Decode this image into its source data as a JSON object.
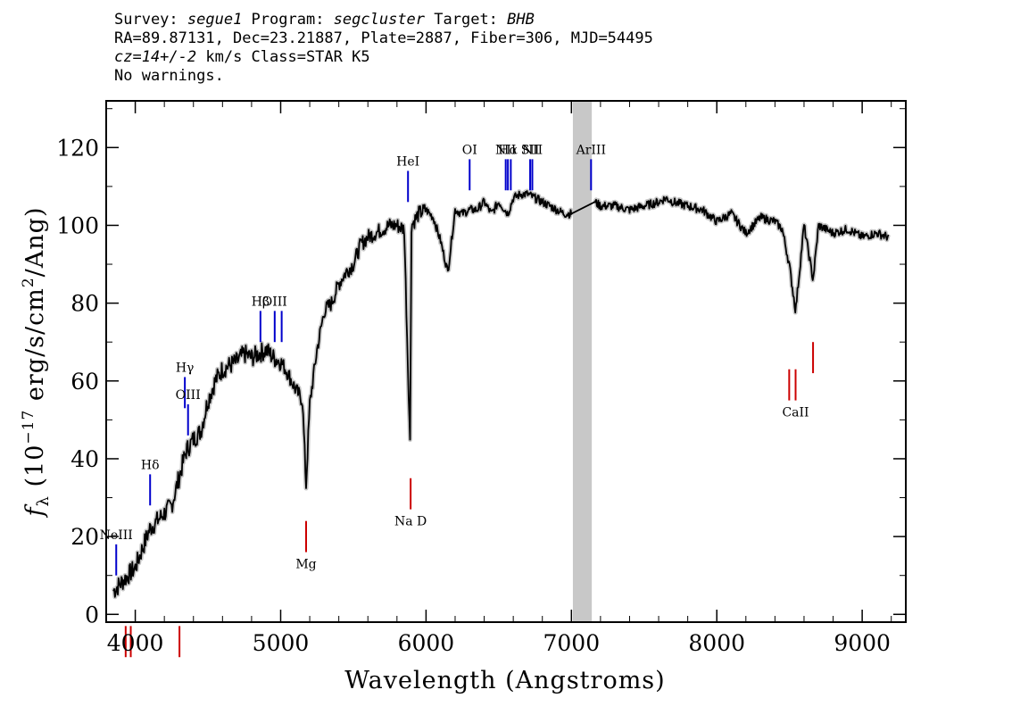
{
  "header": {
    "line1": {
      "survey_label": "Survey: ",
      "survey": "segue1",
      "program_label": " Program: ",
      "program": "segcluster",
      "target_label": " Target: ",
      "target": "BHB"
    },
    "line2": "RA=89.87131, Dec=23.21887, Plate=2887, Fiber=306, MJD=54495",
    "line3": {
      "cz": "cz=14+/-2",
      "rest": " km/s Class=STAR K5"
    },
    "line4": "No warnings."
  },
  "chart_data": {
    "type": "line",
    "xlabel": "Wavelength (Angstroms)",
    "ylabel": "f_λ (10^-17 erg/s/cm^2/Ang)",
    "xlim": [
      3800,
      9300
    ],
    "ylim": [
      -2,
      132
    ],
    "xticks": [
      4000,
      5000,
      6000,
      7000,
      8000,
      9000
    ],
    "yticks": [
      0,
      20,
      40,
      60,
      80,
      100,
      120
    ],
    "masked_band": [
      7010,
      7140
    ],
    "series": [
      {
        "x": [
          3850,
          3900,
          3950,
          4000,
          4050,
          4100,
          4150,
          4200,
          4250,
          4300,
          4350,
          4400,
          4450,
          4500,
          4550,
          4600,
          4650,
          4700,
          4750,
          4800,
          4850,
          4900,
          4950,
          5000,
          5050,
          5100,
          5150,
          5175,
          5200,
          5250,
          5300,
          5350,
          5400,
          5450,
          5500,
          5550,
          5600,
          5650,
          5700,
          5750,
          5800,
          5850,
          5890,
          5900,
          5950,
          6000,
          6050,
          6100,
          6150,
          6200,
          6250,
          6300,
          6350,
          6400,
          6450,
          6500,
          6563,
          6600,
          6650,
          6700,
          6750,
          6800,
          6850,
          6900,
          6950,
          7000,
          7160,
          7200,
          7300,
          7400,
          7500,
          7600,
          7650,
          7700,
          7800,
          7900,
          8000,
          8100,
          8200,
          8300,
          8400,
          8450,
          8498,
          8542,
          8600,
          8662,
          8700,
          8800,
          8900,
          9000,
          9100,
          9180
        ],
        "y": [
          6,
          8,
          10,
          12,
          17,
          22,
          24,
          26,
          28,
          35,
          42,
          45,
          47,
          55,
          60,
          63,
          64,
          65,
          67,
          66,
          67,
          68,
          66,
          65,
          62,
          58,
          55,
          33,
          54,
          68,
          78,
          80,
          85,
          88,
          90,
          95,
          97,
          98,
          99,
          100,
          100,
          99,
          44,
          100,
          103,
          104,
          102,
          96,
          88,
          104,
          103,
          104,
          104,
          106,
          103,
          106,
          103,
          107,
          108,
          108,
          107,
          106,
          105,
          104,
          103,
          103,
          106,
          105,
          105,
          104,
          105,
          106,
          107,
          106,
          105,
          104,
          101,
          103,
          98,
          102,
          101,
          99,
          90,
          78,
          100,
          86,
          100,
          98,
          99,
          97,
          98,
          97
        ]
      }
    ],
    "line_markers": [
      {
        "label": "NeIII",
        "x": 3869,
        "y": 18,
        "color": "#0000cc"
      },
      {
        "label": "Hδ",
        "x": 4102,
        "y": 36,
        "color": "#0000cc"
      },
      {
        "label": "Hγ",
        "x": 4341,
        "y": 61,
        "color": "#0000cc"
      },
      {
        "label": "OIII",
        "x": 4363,
        "y": 54,
        "color": "#0000cc"
      },
      {
        "label": "Hβ",
        "x": 4861,
        "y": 78,
        "color": "#0000cc"
      },
      {
        "label": "OIII",
        "x": 4959,
        "y": 78,
        "color": "#0000cc"
      },
      {
        "label": "",
        "x": 5007,
        "y": 78,
        "color": "#0000cc"
      },
      {
        "label": "HeI",
        "x": 5876,
        "y": 114,
        "color": "#0000cc"
      },
      {
        "label": "OI",
        "x": 6300,
        "y": 117,
        "color": "#0000cc"
      },
      {
        "label": "NII",
        "x": 6548,
        "y": 117,
        "color": "#0000cc"
      },
      {
        "label": "Hα",
        "x": 6563,
        "y": 117,
        "color": "#0000cc"
      },
      {
        "label": "",
        "x": 6583,
        "y": 117,
        "color": "#0000cc"
      },
      {
        "label": "SII",
        "x": 6716,
        "y": 117,
        "color": "#0000cc"
      },
      {
        "label": "NII",
        "x": 6731,
        "y": 117,
        "color": "#0000cc"
      },
      {
        "label": "ArIII",
        "x": 7135,
        "y": 117,
        "color": "#0000cc"
      },
      {
        "label": "",
        "x": 3934,
        "y": -3,
        "color": "#cc0000"
      },
      {
        "label": "",
        "x": 3969,
        "y": -3,
        "color": "#cc0000"
      },
      {
        "label": "",
        "x": 4304,
        "y": -3,
        "color": "#cc0000"
      },
      {
        "label": "Mg",
        "x": 5175,
        "y": 24,
        "color": "#cc0000"
      },
      {
        "label": "Na D",
        "x": 5894,
        "y": 35,
        "color": "#cc0000"
      },
      {
        "label": "",
        "x": 8498,
        "y": 63,
        "color": "#cc0000"
      },
      {
        "label": "CaII",
        "x": 8542,
        "y": 63,
        "color": "#cc0000"
      },
      {
        "label": "",
        "x": 8662,
        "y": 70,
        "color": "#cc0000"
      }
    ],
    "colors": {
      "spectrum": "#000000",
      "error_band": "#c8c8c8",
      "emission": "#0000cc",
      "absorption": "#cc0000",
      "mask": "#c8c8c8"
    }
  }
}
